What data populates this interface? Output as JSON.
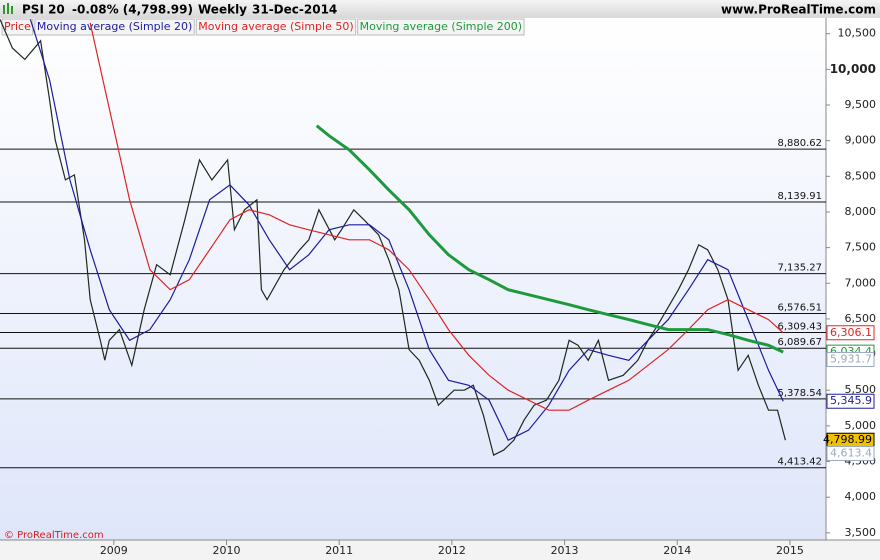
{
  "chart_data": {
    "type": "line",
    "title": "PSI 20",
    "change": "-0.08% (4,798.99)",
    "period": "Weekly",
    "date": "31-Dec-2014",
    "source": "www.ProRealTime.com",
    "copyright": "© ProRealTime.com",
    "xlim": [
      2007.99,
      2015.32
    ],
    "xticks": [
      2009,
      2010,
      2011,
      2012,
      2013,
      2014,
      2015
    ],
    "ylim": [
      3400,
      10720
    ],
    "yticks": [
      {
        "value": 3500,
        "label": "3,500"
      },
      {
        "value": 4000,
        "label": "4,000"
      },
      {
        "value": 4500,
        "label": "4,500"
      },
      {
        "value": 5000,
        "label": "5,000"
      },
      {
        "value": 5500,
        "label": "5,500"
      },
      {
        "value": 6000,
        "label": "6,000"
      },
      {
        "value": 6500,
        "label": "6,500"
      },
      {
        "value": 7000,
        "label": "7,000"
      },
      {
        "value": 7500,
        "label": "7,500"
      },
      {
        "value": 8000,
        "label": "8,000"
      },
      {
        "value": 8500,
        "label": "8,500"
      },
      {
        "value": 9000,
        "label": "9,000"
      },
      {
        "value": 9500,
        "label": "9,500"
      },
      {
        "value": 10000,
        "label": "10,000"
      },
      {
        "value": 10500,
        "label": "10,500"
      }
    ],
    "series": [
      {
        "name": "Price",
        "color": "#1e2a1e",
        "legend_color": "#d42020",
        "x": [
          2007.99,
          2008.1,
          2008.21,
          2008.35,
          2008.43,
          2008.48,
          2008.57,
          2008.65,
          2008.74,
          2008.79,
          2008.88,
          2008.92,
          2008.96,
          2009.05,
          2009.16,
          2009.27,
          2009.38,
          2009.5,
          2009.63,
          2009.76,
          2009.87,
          2010.01,
          2010.07,
          2010.16,
          2010.27,
          2010.31,
          2010.36,
          2010.51,
          2010.65,
          2010.73,
          2010.82,
          2010.96,
          2011.02,
          2011.13,
          2011.22,
          2011.35,
          2011.44,
          2011.53,
          2011.62,
          2011.71,
          2011.8,
          2011.88,
          2012.02,
          2012.11,
          2012.19,
          2012.28,
          2012.37,
          2012.46,
          2012.55,
          2012.64,
          2012.73,
          2012.84,
          2012.95,
          2013.04,
          2013.12,
          2013.21,
          2013.3,
          2013.39,
          2013.52,
          2013.65,
          2013.74,
          2013.83,
          2014.01,
          2014.1,
          2014.19,
          2014.27,
          2014.36,
          2014.45,
          2014.54,
          2014.63,
          2014.72,
          2014.81,
          2014.89,
          2014.96
        ],
        "values": [
          10700,
          10300,
          10140,
          10400,
          9570,
          9010,
          8450,
          8520,
          7610,
          6770,
          6200,
          5920,
          6200,
          6350,
          5850,
          6630,
          7260,
          7120,
          7890,
          8730,
          8450,
          8730,
          7750,
          8030,
          8170,
          6910,
          6770,
          7190,
          7470,
          7610,
          8030,
          7610,
          7750,
          8030,
          7890,
          7680,
          7330,
          6910,
          6070,
          5920,
          5640,
          5290,
          5500,
          5500,
          5570,
          5150,
          4590,
          4660,
          4800,
          5080,
          5290,
          5360,
          5640,
          6200,
          6130,
          5920,
          6200,
          5640,
          5710,
          5920,
          6200,
          6420,
          6910,
          7190,
          7540,
          7470,
          7190,
          6770,
          5780,
          5990,
          5570,
          5220,
          5220,
          4798.99
        ]
      },
      {
        "name": "Moving average (Simple 20)",
        "color": "#1c1ca0",
        "legend_color": "#1c1ca0",
        "x": [
          2008.26,
          2008.43,
          2008.61,
          2008.79,
          2008.96,
          2009.14,
          2009.32,
          2009.5,
          2009.67,
          2009.85,
          2010.03,
          2010.2,
          2010.38,
          2010.56,
          2010.73,
          2010.91,
          2011.09,
          2011.27,
          2011.44,
          2011.62,
          2011.8,
          2011.97,
          2012.15,
          2012.33,
          2012.5,
          2012.68,
          2012.86,
          2013.04,
          2013.21,
          2013.39,
          2013.57,
          2013.74,
          2013.92,
          2014.1,
          2014.27,
          2014.45,
          2014.63,
          2014.81,
          2014.94
        ],
        "values": [
          10700,
          9850,
          8450,
          7470,
          6630,
          6200,
          6350,
          6770,
          7330,
          8170,
          8380,
          8100,
          7610,
          7190,
          7400,
          7750,
          7820,
          7820,
          7610,
          6910,
          6070,
          5640,
          5570,
          5360,
          4800,
          4940,
          5290,
          5780,
          6070,
          5990,
          5920,
          6200,
          6490,
          6910,
          7330,
          7190,
          6490,
          5780,
          5345.9
        ]
      },
      {
        "name": "Moving average (Simple 50)",
        "color": "#e02424",
        "legend_color": "#e02424",
        "x": [
          2008.79,
          2008.96,
          2009.14,
          2009.32,
          2009.5,
          2009.67,
          2009.85,
          2010.03,
          2010.2,
          2010.38,
          2010.56,
          2010.73,
          2010.91,
          2011.09,
          2011.27,
          2011.44,
          2011.62,
          2011.8,
          2011.97,
          2012.15,
          2012.33,
          2012.5,
          2012.68,
          2012.86,
          2013.04,
          2013.21,
          2013.39,
          2013.57,
          2013.74,
          2013.92,
          2014.1,
          2014.27,
          2014.45,
          2014.63,
          2014.81,
          2014.94
        ],
        "values": [
          10650,
          9450,
          8170,
          7190,
          6910,
          7050,
          7470,
          7890,
          8030,
          7960,
          7820,
          7750,
          7680,
          7610,
          7610,
          7470,
          7190,
          6770,
          6350,
          5990,
          5710,
          5500,
          5360,
          5220,
          5220,
          5360,
          5500,
          5640,
          5850,
          6070,
          6350,
          6630,
          6770,
          6630,
          6490,
          6306.1
        ]
      },
      {
        "name": "Moving average (Simple 200)",
        "color": "#1e9a3c",
        "legend_color": "#1e9a3c",
        "x": [
          2010.8,
          2010.91,
          2011.09,
          2011.27,
          2011.44,
          2011.62,
          2011.8,
          2011.97,
          2012.15,
          2012.33,
          2012.5,
          2012.68,
          2012.86,
          2013.04,
          2013.21,
          2013.39,
          2013.57,
          2013.74,
          2013.92,
          2014.1,
          2014.27,
          2014.45,
          2014.63,
          2014.81,
          2014.94
        ],
        "values": [
          9210,
          9070,
          8870,
          8590,
          8310,
          8030,
          7680,
          7400,
          7190,
          7050,
          6910,
          6840,
          6770,
          6700,
          6630,
          6560,
          6490,
          6420,
          6350,
          6350,
          6350,
          6280,
          6200,
          6130,
          6034.4
        ]
      }
    ],
    "levels": [
      {
        "value": 8880.62,
        "label": "8,880.62"
      },
      {
        "value": 8139.91,
        "label": "8,139.91"
      },
      {
        "value": 7135.27,
        "label": "7,135.27"
      },
      {
        "value": 6576.51,
        "label": "6,576.51"
      },
      {
        "value": 6309.43,
        "label": "6,309.43"
      },
      {
        "value": 6089.67,
        "label": "6,089.67"
      },
      {
        "value": 5378.54,
        "label": "5,378.54"
      },
      {
        "value": 4413.42,
        "label": "4,413.42"
      }
    ],
    "last_values": [
      {
        "value": 6306.1,
        "label": "6,306.1",
        "color": "#e02424"
      },
      {
        "value": 6034.4,
        "label": "6,034.4",
        "color": "#1e9a3c"
      },
      {
        "value": 5931.7,
        "label": "5,931.7",
        "color": "#9aa8c0"
      },
      {
        "value": 5345.9,
        "label": "5,345.9",
        "color": "#1c1ca0"
      },
      {
        "value": 4798.99,
        "label": "4,798.99",
        "color": "#000000",
        "fill": "#f2c200"
      },
      {
        "value": 4613.4,
        "label": "4,613.4",
        "color": "#9aa8c0"
      }
    ]
  }
}
